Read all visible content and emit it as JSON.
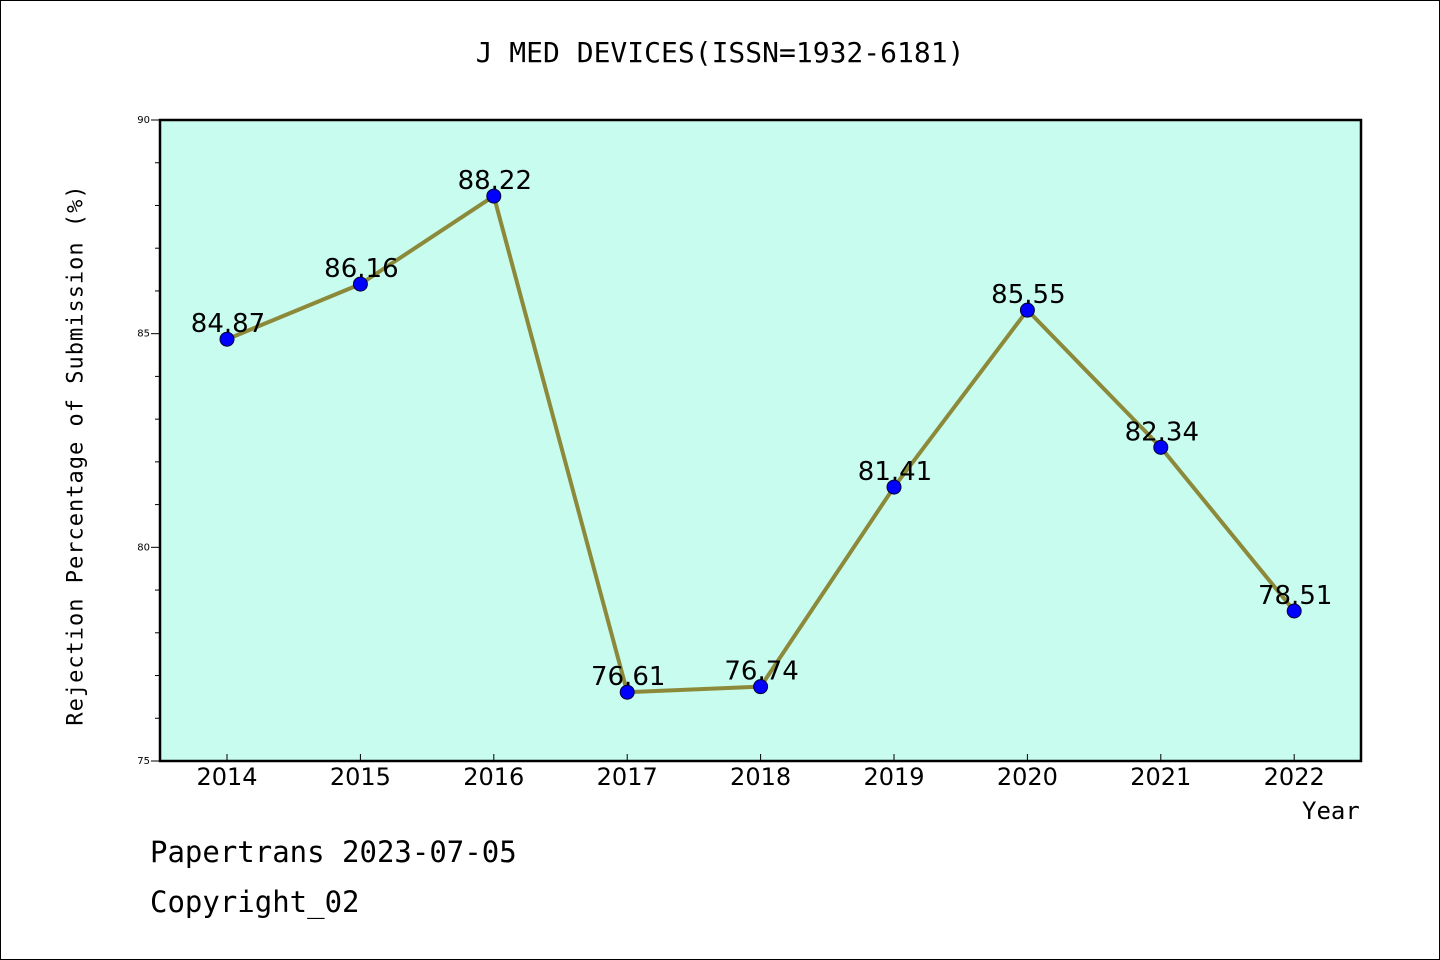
{
  "chart_data": {
    "type": "line",
    "title": "J MED DEVICES(ISSN=1932-6181)",
    "xlabel": "Year",
    "ylabel": "Rejection Percentage of Submission (%)",
    "categories": [
      "2014",
      "2015",
      "2016",
      "2017",
      "2018",
      "2019",
      "2020",
      "2021",
      "2022"
    ],
    "values": [
      84.87,
      86.16,
      88.22,
      76.61,
      76.74,
      81.41,
      85.55,
      82.34,
      78.51
    ],
    "data_labels": [
      "84.87",
      "86.16",
      "88.22",
      "76.61",
      "76.74",
      "81.41",
      "85.55",
      "82.34",
      "78.51"
    ],
    "ylim": [
      75,
      90
    ],
    "yticks": [
      "75",
      "80",
      "85",
      "90"
    ],
    "grid": false,
    "colors": {
      "plot_background": "#c8fcee",
      "line": "#8c8a3a",
      "marker": "#0000ff"
    }
  },
  "footer": {
    "line1": "Papertrans 2023-07-05",
    "line2": "Copyright_02"
  }
}
